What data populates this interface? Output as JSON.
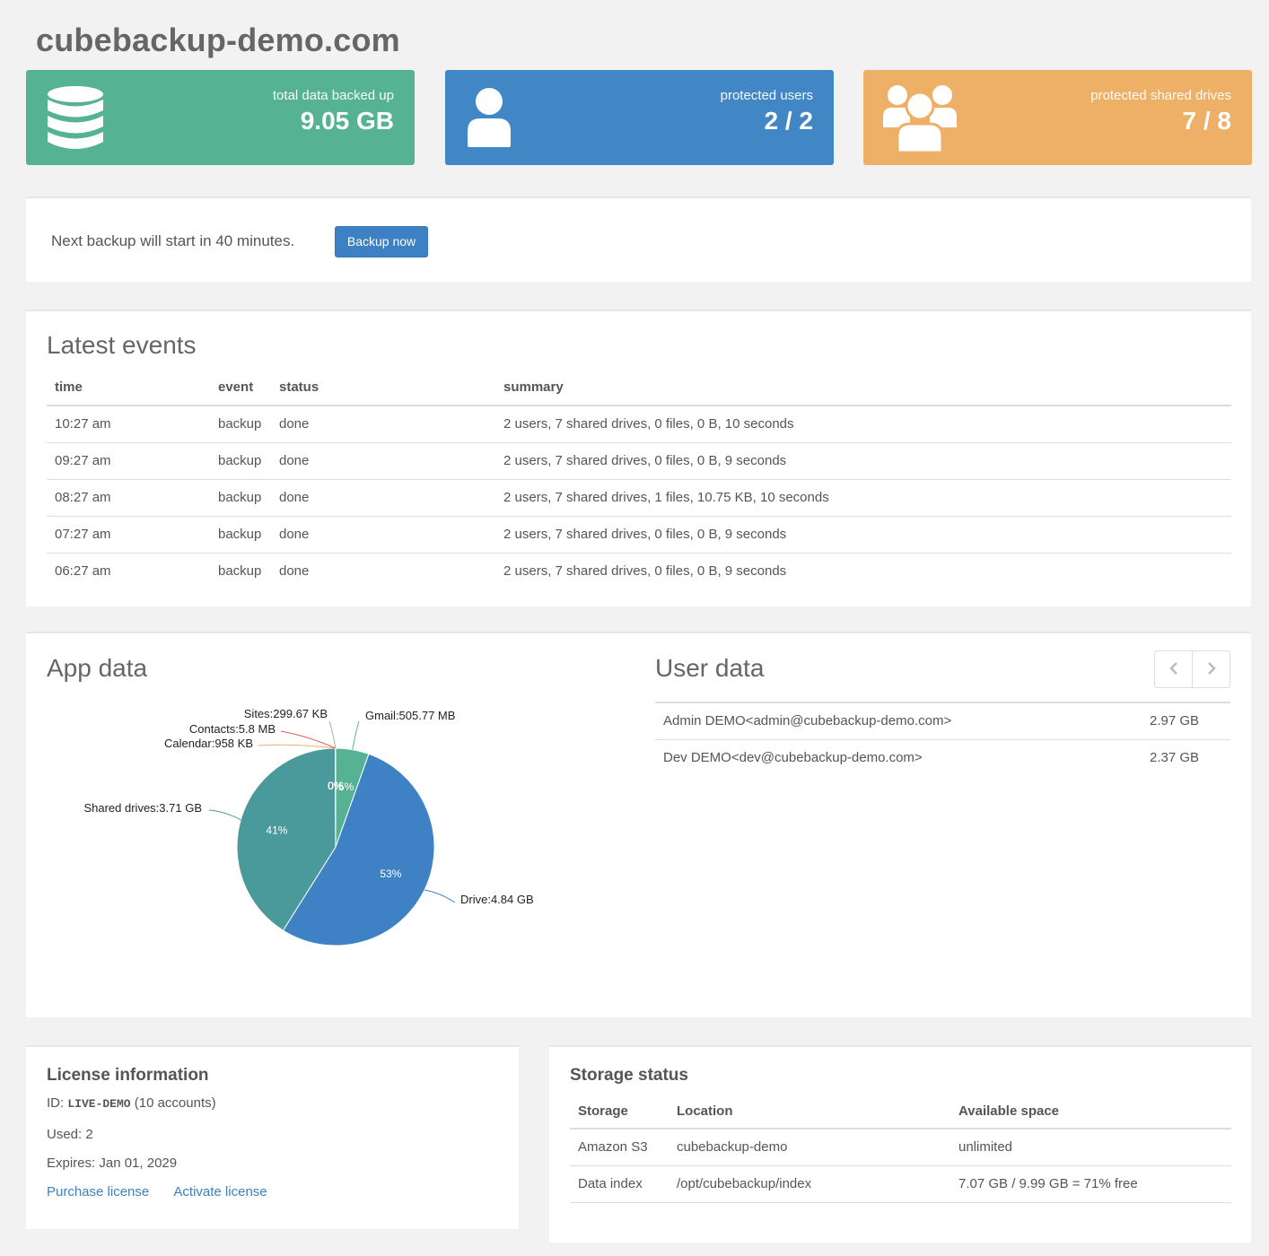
{
  "site": {
    "title": "cubebackup-demo.com"
  },
  "stats": [
    {
      "label": "total data backed up",
      "value": "9.05 GB",
      "icon": "database-icon",
      "color": "#55b394"
    },
    {
      "label": "protected users",
      "value": "2 / 2",
      "icon": "user-icon",
      "color": "#4287c5"
    },
    {
      "label": "protected shared drives",
      "value": "7 / 8",
      "icon": "users-group-icon",
      "color": "#eeb066"
    }
  ],
  "next_backup": {
    "text": "Next backup will start in 40 minutes.",
    "button_label": "Backup now"
  },
  "events": {
    "heading": "Latest events",
    "columns": [
      "time",
      "event",
      "status",
      "summary"
    ],
    "rows": [
      [
        "10:27 am",
        "backup",
        "done",
        "2 users, 7 shared drives, 0 files, 0 B, 10 seconds"
      ],
      [
        "09:27 am",
        "backup",
        "done",
        "2 users, 7 shared drives, 0 files, 0 B, 9 seconds"
      ],
      [
        "08:27 am",
        "backup",
        "done",
        "2 users, 7 shared drives, 1 files, 10.75 KB, 10 seconds"
      ],
      [
        "07:27 am",
        "backup",
        "done",
        "2 users, 7 shared drives, 0 files, 0 B, 9 seconds"
      ],
      [
        "06:27 am",
        "backup",
        "done",
        "2 users, 7 shared drives, 0 files, 0 B, 9 seconds"
      ]
    ]
  },
  "app_data": {
    "heading": "App data",
    "chart_data": {
      "type": "pie",
      "slices": [
        {
          "name": "Gmail",
          "label": "Gmail:505.77 MB",
          "value_mb": 505.77,
          "percent_label": "5%",
          "color": "#55b394"
        },
        {
          "name": "Drive",
          "label": "Drive:4.84 GB",
          "value_mb": 4956.16,
          "percent_label": "53%",
          "color": "#3f81c5"
        },
        {
          "name": "Shared drives",
          "label": "Shared drives:3.71 GB",
          "value_mb": 3799.04,
          "percent_label": "41%",
          "color": "#4a9a9c"
        },
        {
          "name": "Calendar",
          "label": "Calendar:958 KB",
          "value_mb": 0.94,
          "percent_label": "0%",
          "color": "#eeb066"
        },
        {
          "name": "Contacts",
          "label": "Contacts:5.8 MB",
          "value_mb": 5.8,
          "percent_label": "0%",
          "color": "#e05d5d"
        },
        {
          "name": "Sites",
          "label": "Sites:299.67 KB",
          "value_mb": 0.29,
          "percent_label": "0%",
          "color": "#aaaaaa"
        }
      ]
    }
  },
  "user_data": {
    "heading": "User data",
    "prev_icon": "chevron-left-icon",
    "next_icon": "chevron-right-icon",
    "rows": [
      {
        "name": "Admin DEMO<admin@cubebackup-demo.com>",
        "size": "2.97 GB"
      },
      {
        "name": "Dev DEMO<dev@cubebackup-demo.com>",
        "size": "2.37 GB"
      }
    ]
  },
  "license": {
    "heading": "License information",
    "id_prefix": "ID: ",
    "id": "LIVE-DEMO",
    "accounts": "(10 accounts)",
    "used": "Used: 2",
    "expires": "Expires: Jan 01, 2029",
    "purchase_link": "Purchase license",
    "activate_link": "Activate license"
  },
  "storage": {
    "heading": "Storage status",
    "columns": [
      "Storage",
      "Location",
      "Available space"
    ],
    "rows": [
      [
        "Amazon S3",
        "cubebackup-demo",
        "unlimited"
      ],
      [
        "Data index",
        "/opt/cubebackup/index",
        "7.07 GB / 9.99 GB = 71% free"
      ]
    ]
  }
}
